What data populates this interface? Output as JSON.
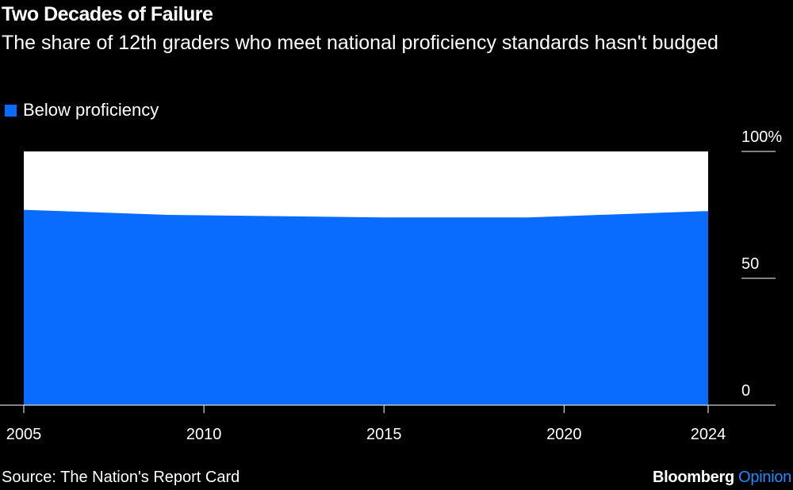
{
  "title": "Two Decades of Failure",
  "subtitle": "The share of 12th graders who meet national proficiency standards hasn't budged",
  "legend": {
    "label": "Below proficiency",
    "color": "#0A6BFF"
  },
  "source": "Source: The Nation's Report Card",
  "brand": {
    "name": "Bloomberg",
    "accent": "Opinion"
  },
  "colors": {
    "background": "#000000",
    "text": "#ffffff",
    "area": "#0A6BFF",
    "total": "#ffffff"
  },
  "chart_data": {
    "type": "area",
    "title": "Two Decades of Failure",
    "series": [
      {
        "name": "Below proficiency",
        "x": [
          2005,
          2009,
          2015,
          2019,
          2024
        ],
        "values": [
          77,
          75,
          74,
          74,
          76.5
        ]
      }
    ],
    "total": 100,
    "x_ticks": [
      2005,
      2010,
      2015,
      2020,
      2024
    ],
    "x_tick_labels": [
      "2005",
      "2010",
      "2015",
      "2020",
      "2024"
    ],
    "y_ticks": [
      0,
      50,
      100
    ],
    "y_tick_labels": [
      "0",
      "50",
      "100%"
    ],
    "xlim": [
      2005,
      2024
    ],
    "ylim": [
      0,
      100
    ],
    "xlabel": "",
    "ylabel": "",
    "grid": false,
    "legend_position": "top-left"
  }
}
